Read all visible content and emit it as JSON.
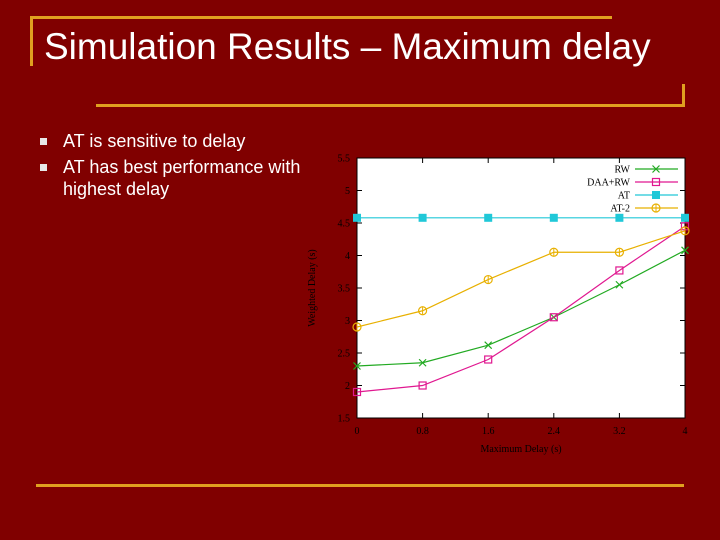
{
  "slide": {
    "title": "Simulation Results – Maximum delay",
    "bullets": [
      "AT is sensitive to delay",
      "AT has best performance with highest delay"
    ]
  },
  "colors": {
    "background": "#800000",
    "accent_line": "#e0a020",
    "text": "#ffffff",
    "chart_background": "#ffffff"
  },
  "chart_data": {
    "type": "line",
    "title": "",
    "xlabel": "Maximum Delay (s)",
    "ylabel": "Weighted Delay (s)",
    "x": [
      0,
      0.8,
      1.6,
      2.4,
      3.2,
      4
    ],
    "xlim": [
      0,
      4
    ],
    "ylim": [
      1.5,
      5.5
    ],
    "xticks": [
      "0",
      "0.8",
      "1.6",
      "2.4",
      "3.2",
      "4"
    ],
    "yticks": [
      "1.5",
      "2",
      "2.5",
      "3",
      "3.5",
      "4",
      "4.5",
      "5",
      "5.5"
    ],
    "legend_position": "top-right",
    "grid": false,
    "series": [
      {
        "name": "RW",
        "values": [
          2.3,
          2.35,
          2.62,
          3.05,
          3.55,
          4.08
        ],
        "color": "#22aa22",
        "marker": "x"
      },
      {
        "name": "DAA+RW",
        "values": [
          1.9,
          2.0,
          2.4,
          3.05,
          3.77,
          4.45
        ],
        "color": "#e01890",
        "marker": "square-open"
      },
      {
        "name": "AT",
        "values": [
          4.58,
          4.58,
          4.58,
          4.58,
          4.58,
          4.58
        ],
        "color": "#20c8d8",
        "marker": "square-filled"
      },
      {
        "name": "AT-2",
        "values": [
          2.9,
          3.15,
          3.63,
          4.05,
          4.05,
          4.38
        ],
        "color": "#e8b000",
        "marker": "circle-plus"
      }
    ]
  }
}
